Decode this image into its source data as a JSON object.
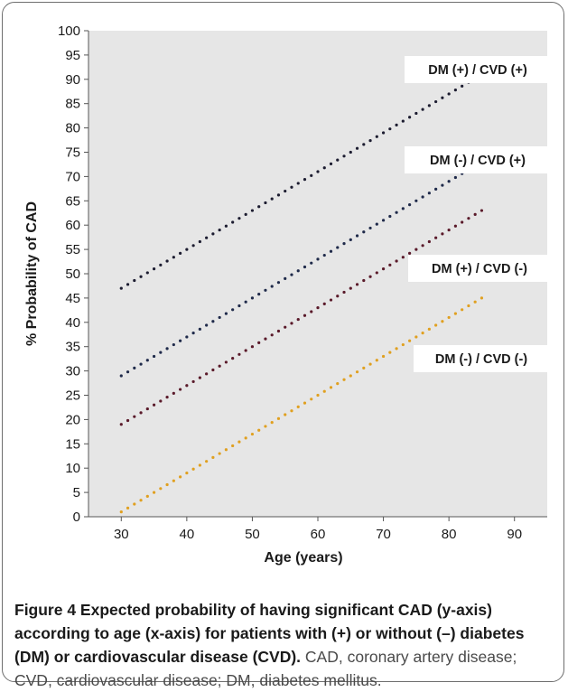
{
  "chart_data": {
    "type": "scatter",
    "xlabel": "Age (years)",
    "ylabel": "% Probability of CAD",
    "xlim": [
      25,
      95
    ],
    "ylim": [
      0,
      100
    ],
    "x_ticks": [
      30,
      40,
      50,
      60,
      70,
      80,
      90
    ],
    "y_ticks": [
      0,
      5,
      10,
      15,
      20,
      25,
      30,
      35,
      40,
      45,
      50,
      55,
      60,
      65,
      70,
      75,
      80,
      85,
      90,
      95,
      100
    ],
    "grid": false,
    "legend": "inline labels on right",
    "background": "#e6e6e6",
    "series": [
      {
        "name": "DM (+) / CVD (+)",
        "color": "#1c1c30",
        "x_start": 30,
        "x_end": 85,
        "y_start": 47,
        "y_end": 91
      },
      {
        "name": "DM (-) / CVD (+)",
        "color": "#1f2a4a",
        "x_start": 30,
        "x_end": 85,
        "y_start": 29,
        "y_end": 73
      },
      {
        "name": "DM (+) / CVD (-)",
        "color": "#5a1a2a",
        "x_start": 30,
        "x_end": 85,
        "y_start": 19,
        "y_end": 63
      },
      {
        "name": "DM (-) / CVD (-)",
        "color": "#e0a020",
        "x_start": 30,
        "x_end": 85,
        "y_start": 1,
        "y_end": 45
      }
    ]
  },
  "caption": {
    "title": "Figure 4 Expected probability of having significant CAD (y-axis) according to age (x-axis) for patients with (+) or without (–) diabetes (DM) or cardiovascular disease (CVD).",
    "text": " CAD, coronary artery disease; CVD, cardiovascular disease; DM, diabetes mellitus."
  }
}
